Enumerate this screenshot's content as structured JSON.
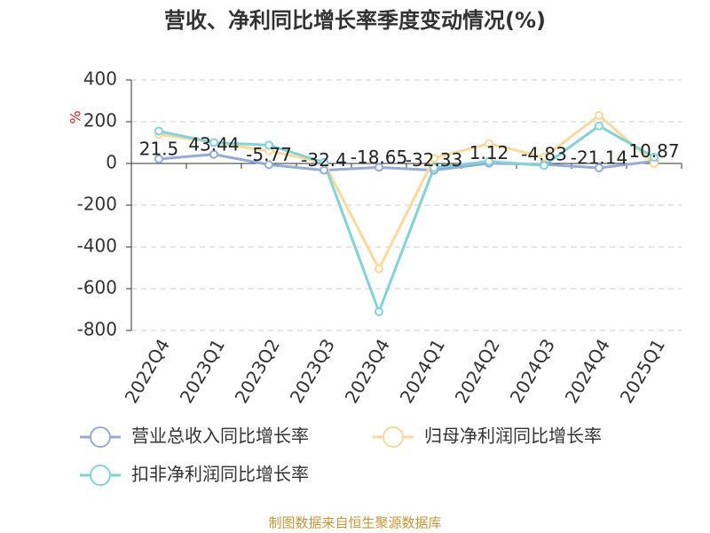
{
  "chart_data": {
    "type": "line",
    "title": "营收、净利同比增长率季度变动情况(%)",
    "y_label": "%",
    "source": "制图数据来自恒生聚源数据库",
    "categories": [
      "2022Q4",
      "2023Q1",
      "2023Q2",
      "2023Q3",
      "2023Q4",
      "2024Q1",
      "2024Q2",
      "2024Q3",
      "2024Q4",
      "2025Q1"
    ],
    "series": [
      {
        "name": "营业总收入同比增长率",
        "color": "#94aad8",
        "values": [
          21.5,
          43.44,
          -5.77,
          -32.4,
          -18.65,
          -32.33,
          1.12,
          -4.83,
          -21.14,
          10.87
        ]
      },
      {
        "name": "归母净利润同比增长率",
        "color": "#fbd89c",
        "values": [
          140,
          100,
          60,
          5,
          -505,
          25,
          95,
          30,
          230,
          0
        ]
      },
      {
        "name": "扣非净利润同比增长率",
        "color": "#82d3d6",
        "values": [
          155,
          100,
          88,
          5,
          -710,
          -20,
          10,
          -10,
          180,
          30
        ]
      }
    ],
    "ylim": [
      -800,
      400
    ],
    "yticks": [
      -800,
      -600,
      -400,
      -200,
      0,
      200,
      400
    ],
    "grid": true
  }
}
